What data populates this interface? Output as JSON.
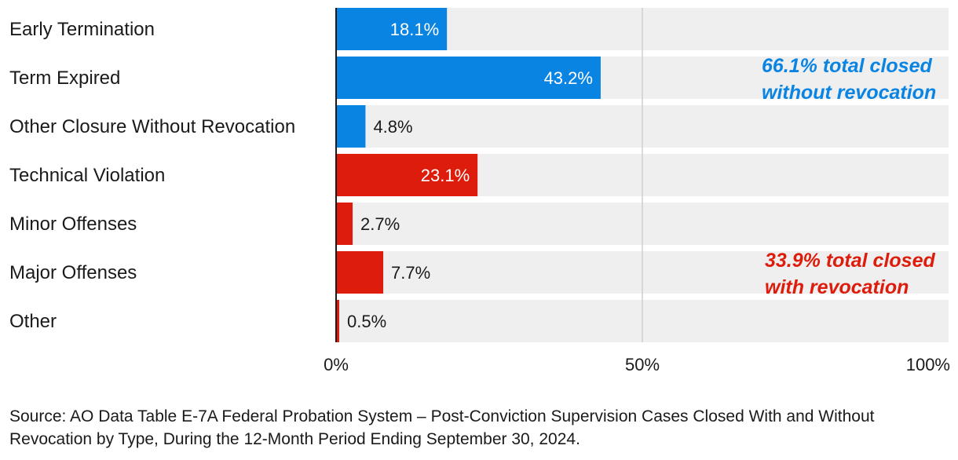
{
  "chart_data": {
    "type": "bar",
    "orientation": "horizontal",
    "categories": [
      "Early Termination",
      "Term Expired",
      "Other Closure Without Revocation",
      "Technical Violation",
      "Minor Offenses",
      "Major Offenses",
      "Other"
    ],
    "values": [
      18.1,
      43.2,
      4.8,
      23.1,
      2.7,
      7.7,
      0.5
    ],
    "value_labels": [
      "18.1%",
      "43.2%",
      "4.8%",
      "23.1%",
      "2.7%",
      "7.7%",
      "0.5%"
    ],
    "groups": [
      "without_revocation",
      "without_revocation",
      "without_revocation",
      "with_revocation",
      "with_revocation",
      "with_revocation",
      "with_revocation"
    ],
    "xlim": [
      0,
      100
    ],
    "xticks": [
      0,
      50,
      100
    ],
    "xtick_labels": [
      "0%",
      "50%",
      "100%"
    ],
    "gridlines": [
      50
    ],
    "annotations": [
      {
        "group": "without_revocation",
        "lines": [
          "66.1% total closed",
          "without revocation"
        ]
      },
      {
        "group": "with_revocation",
        "lines": [
          "33.9% total closed",
          "with revocation"
        ]
      }
    ]
  },
  "colors": {
    "without_revocation": "#0a84e3",
    "with_revocation": "#dd1c0c",
    "track": "#efefef",
    "grid": "#cfcfcf",
    "axis": "#1a1a1a",
    "text": "#1a1a1a",
    "label_inside": "#ffffff"
  },
  "source": "Source: AO Data Table E-7A Federal Probation System – Post-Conviction Supervision Cases Closed With and Without Revocation by Type, During the 12-Month Period Ending September 30, 2024."
}
